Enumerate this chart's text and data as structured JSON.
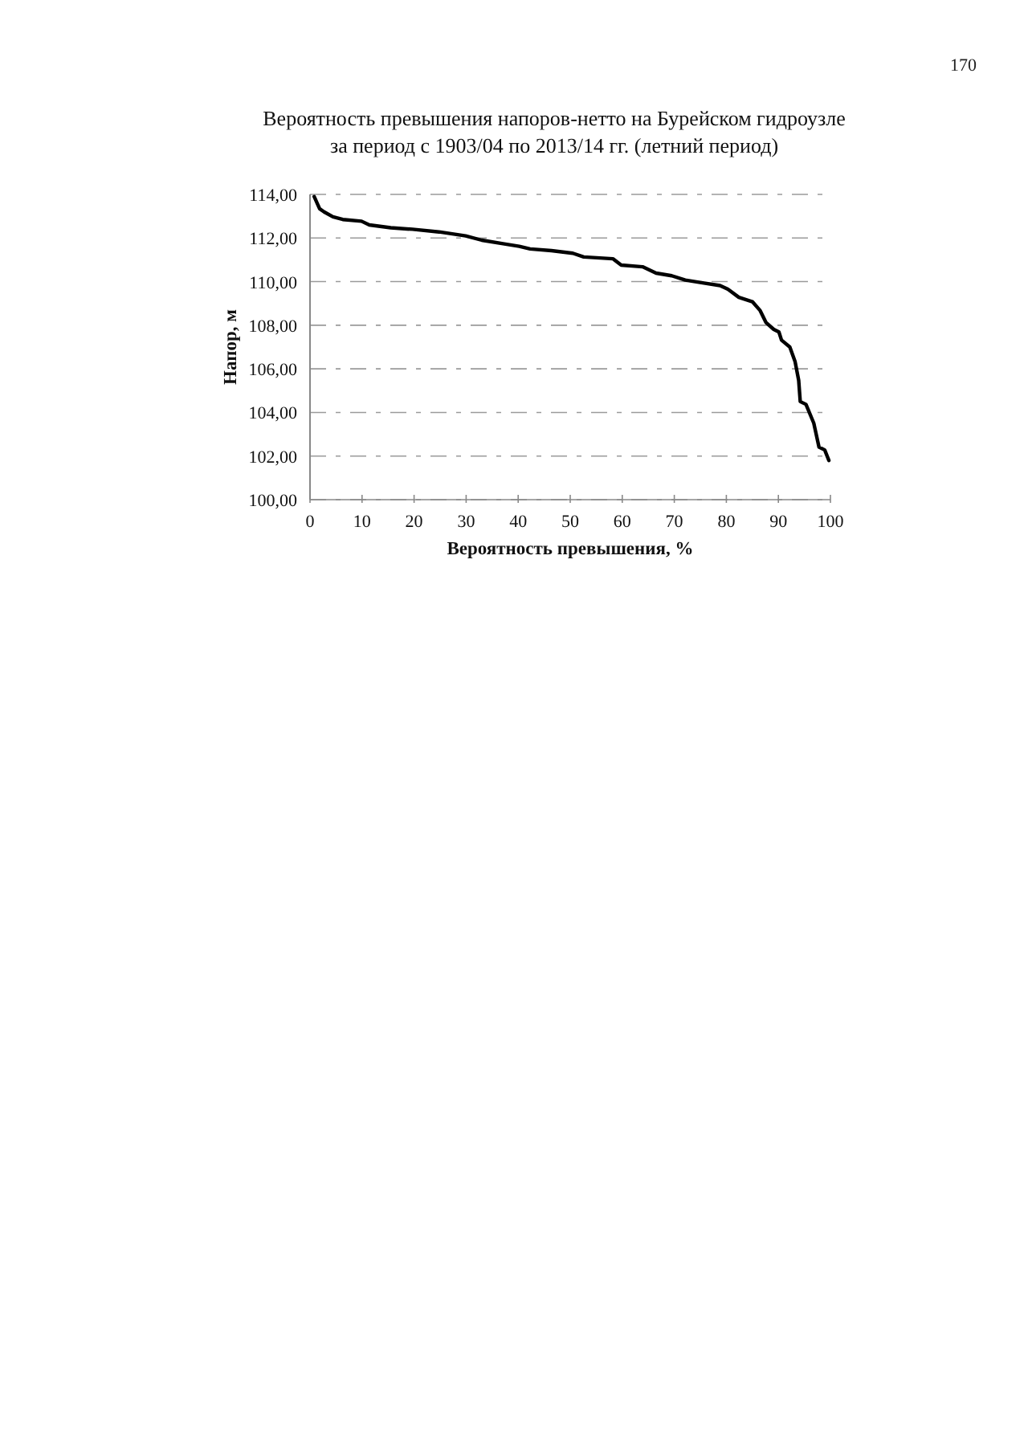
{
  "chart_data": {
    "type": "line",
    "title": "Вероятность превышения напоров-нетто на Бурейском гидроузле\nза период с 1903/04 по 2013/14 гг. (летний период)",
    "xlabel": "Вероятность превышения, %",
    "ylabel": "Напор, м",
    "annotations": [
      "170"
    ],
    "series": [
      {
        "color": "#000000",
        "x": [
          0.8,
          1.85,
          2.7,
          4.4,
          6.3,
          9.9,
          11.4,
          15.5,
          19.7,
          24.8,
          29.9,
          33,
          37.1,
          40.2,
          42.3,
          46.4,
          50.5,
          52.6,
          58.2,
          59.8,
          63.9,
          66.5,
          69.5,
          72.1,
          75.2,
          78.8,
          80.3,
          82.4,
          85,
          86.5,
          87.6,
          89.1,
          90.1,
          90.6,
          92.2,
          93.2,
          93.9,
          94.2,
          95.3,
          96.8,
          97.8,
          98.9,
          99.7
        ],
        "values": [
          113.9,
          113.34,
          113.2,
          112.97,
          112.85,
          112.77,
          112.6,
          112.47,
          112.4,
          112.28,
          112.1,
          111.9,
          111.74,
          111.62,
          111.5,
          111.42,
          111.3,
          111.13,
          111.05,
          110.76,
          110.68,
          110.39,
          110.27,
          110.07,
          109.95,
          109.82,
          109.65,
          109.28,
          109.08,
          108.67,
          108.13,
          107.81,
          107.69,
          107.32,
          107.0,
          106.34,
          105.47,
          104.5,
          104.37,
          103.51,
          102.41,
          102.28,
          101.8
        ]
      }
    ],
    "xlim": [
      0,
      100
    ],
    "xticks": [
      0,
      10,
      20,
      30,
      40,
      50,
      60,
      70,
      80,
      90,
      100
    ],
    "ylim": [
      100,
      114
    ],
    "yticks": [
      {
        "value": 100,
        "label": "100,00"
      },
      {
        "value": 102,
        "label": "102,00"
      },
      {
        "value": 104,
        "label": "104,00"
      },
      {
        "value": 106,
        "label": "106,00"
      },
      {
        "value": 108,
        "label": "108,00"
      },
      {
        "value": 110,
        "label": "110,00"
      },
      {
        "value": 112,
        "label": "112,00"
      },
      {
        "value": 114,
        "label": "114,00"
      }
    ],
    "grid": "y",
    "marker": "none",
    "line_style": "solid"
  }
}
